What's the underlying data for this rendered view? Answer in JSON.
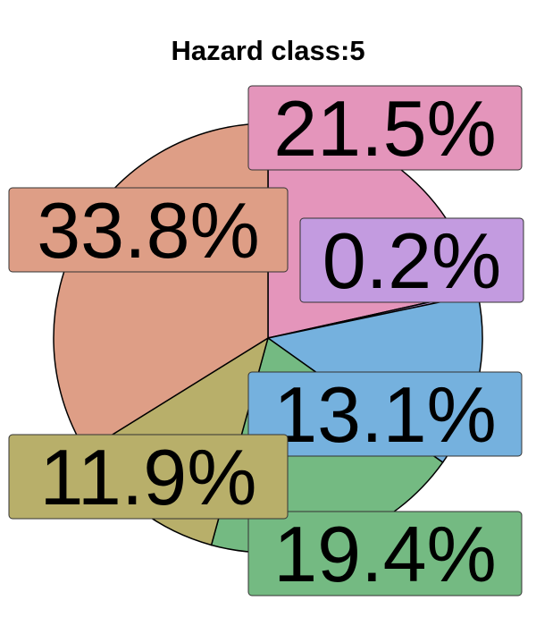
{
  "chart_data": {
    "type": "pie",
    "title": "Hazard class:5",
    "start_angle_deg": 0,
    "direction": "clockwise",
    "slices": [
      {
        "label": "21.5%",
        "value": 21.5,
        "color": "#E495BB"
      },
      {
        "label": "0.2%",
        "value": 0.2,
        "color": "#C39BE0"
      },
      {
        "label": "13.1%",
        "value": 13.1,
        "color": "#75B1DE"
      },
      {
        "label": "19.4%",
        "value": 19.4,
        "color": "#74BA82"
      },
      {
        "label": "11.9%",
        "value": 11.9,
        "color": "#B8AF6A"
      },
      {
        "label": "33.8%",
        "value": 33.8,
        "color": "#DE9E86"
      }
    ]
  }
}
